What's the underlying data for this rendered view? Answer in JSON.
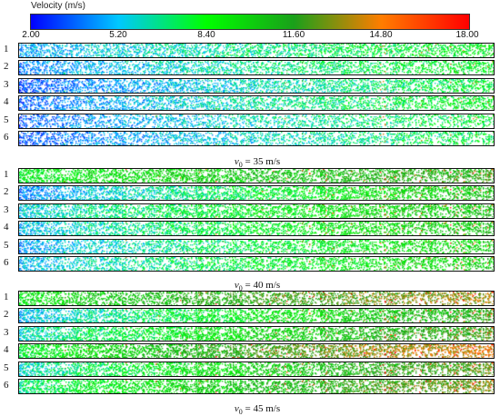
{
  "legend": {
    "title": "Velocity (m/s)",
    "ticks": [
      "2.00",
      "5.20",
      "8.40",
      "11.60",
      "14.80",
      "18.00"
    ],
    "min": 2.0,
    "max": 18.0,
    "colors": [
      "#0000ff",
      "#00c8ff",
      "#00ff00",
      "#1aa01a",
      "#ff7d00",
      "#ff0000"
    ]
  },
  "panels": [
    {
      "case": "v0 = 35 m/s",
      "case_symbol": "v",
      "case_sub": "0",
      "case_rest": "= 35 m/s",
      "rows": [
        {
          "label": "1",
          "left_speed": 4.5,
          "right_speed": 8.5,
          "density": 0.55
        },
        {
          "label": "2",
          "left_speed": 4.0,
          "right_speed": 8.5,
          "density": 0.5
        },
        {
          "label": "3",
          "left_speed": 3.2,
          "right_speed": 8.0,
          "density": 0.55
        },
        {
          "label": "4",
          "left_speed": 3.5,
          "right_speed": 8.5,
          "density": 0.5
        },
        {
          "label": "5",
          "left_speed": 3.5,
          "right_speed": 8.0,
          "density": 0.4
        },
        {
          "label": "6",
          "left_speed": 3.2,
          "right_speed": 7.8,
          "density": 0.45
        }
      ]
    },
    {
      "case": "v0 = 40 m/s",
      "case_symbol": "v",
      "case_sub": "0",
      "case_rest": "= 40 m/s",
      "rows": [
        {
          "label": "1",
          "left_speed": 8.5,
          "right_speed": 11.5,
          "density": 0.6
        },
        {
          "label": "2",
          "left_speed": 4.0,
          "right_speed": 10.5,
          "density": 0.65
        },
        {
          "label": "3",
          "left_speed": 5.5,
          "right_speed": 10.5,
          "density": 0.6
        },
        {
          "label": "4",
          "left_speed": 5.0,
          "right_speed": 10.5,
          "density": 0.55
        },
        {
          "label": "5",
          "left_speed": 4.5,
          "right_speed": 10.0,
          "density": 0.5
        },
        {
          "label": "6",
          "left_speed": 5.0,
          "right_speed": 10.0,
          "density": 0.5
        }
      ]
    },
    {
      "case": "v0 = 45 m/s",
      "case_symbol": "v",
      "case_sub": "0",
      "case_rest": "= 45 m/s",
      "rows": [
        {
          "label": "1",
          "left_speed": 9.0,
          "right_speed": 13.5,
          "density": 0.55
        },
        {
          "label": "2",
          "left_speed": 5.0,
          "right_speed": 11.5,
          "density": 0.7
        },
        {
          "label": "3",
          "left_speed": 6.0,
          "right_speed": 12.0,
          "density": 0.7
        },
        {
          "label": "4",
          "left_speed": 8.0,
          "right_speed": 14.5,
          "density": 0.75
        },
        {
          "label": "5",
          "left_speed": 6.0,
          "right_speed": 12.5,
          "density": 0.65
        },
        {
          "label": "6",
          "left_speed": 7.0,
          "right_speed": 13.0,
          "density": 0.7
        }
      ]
    }
  ]
}
